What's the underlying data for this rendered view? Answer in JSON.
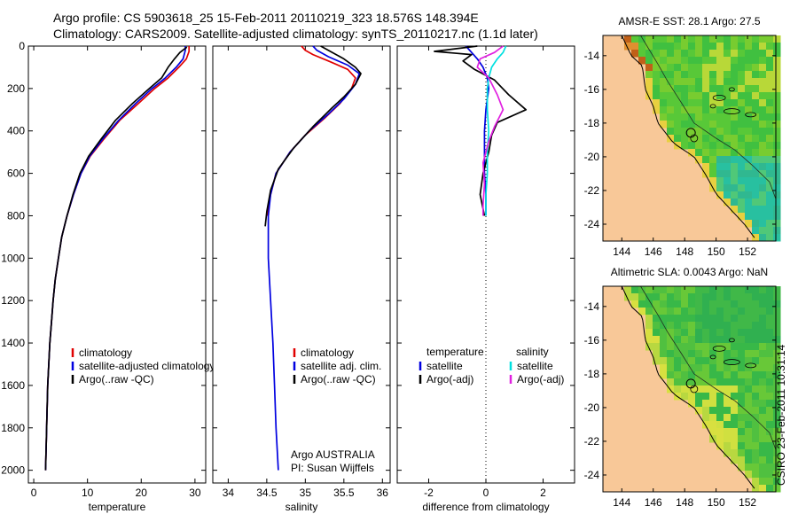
{
  "header": {
    "line1": "Argo profile: CS 5903618_25 15-Feb-2011 20110219_323 18.576S 148.394E",
    "line2": "Climatology: CARS2009. Satellite-adjusted climatology: synTS_20110217.nc (1.1d later)"
  },
  "footer": {
    "stamp": "CSIRO 23-Feb-2011 10:31:14",
    "argo_group": "Argo AUSTRALIA",
    "pi": "PI: Susan Wijffels"
  },
  "colors": {
    "red": "#e00000",
    "blue": "#0000e0",
    "black": "#000000",
    "cyan": "#00e0e0",
    "magenta": "#e020e0",
    "ocean": "#1ab04a",
    "land": "#f8c898"
  },
  "chart_data": [
    {
      "type": "line",
      "xlabel": "temperature",
      "xlim": [
        -1,
        32
      ],
      "xticks": [
        0,
        10,
        20,
        30
      ],
      "ylim": [
        2060,
        0
      ],
      "yticks": [
        0,
        200,
        400,
        600,
        800,
        1000,
        1200,
        1400,
        1600,
        1800,
        2000
      ],
      "legend": [
        "climatology",
        "satellite-adjusted climatology",
        "Argo(..raw -QC)"
      ],
      "series": [
        {
          "name": "climatology",
          "color": "red",
          "points": [
            [
              28.9,
              0
            ],
            [
              28.9,
              25
            ],
            [
              28.4,
              60
            ],
            [
              27,
              100
            ],
            [
              25,
              150
            ],
            [
              22.5,
              200
            ],
            [
              19.5,
              270
            ],
            [
              16,
              350
            ],
            [
              13,
              440
            ],
            [
              10.5,
              520
            ],
            [
              8.8,
              600
            ],
            [
              7.4,
              700
            ],
            [
              6.2,
              800
            ],
            [
              5.2,
              900
            ],
            [
              4.6,
              1000
            ],
            [
              4.0,
              1100
            ],
            [
              3.6,
              1200
            ],
            [
              3.3,
              1300
            ],
            [
              3.0,
              1400
            ],
            [
              2.8,
              1500
            ],
            [
              2.6,
              1600
            ],
            [
              2.5,
              1700
            ],
            [
              2.4,
              1800
            ],
            [
              2.3,
              1900
            ],
            [
              2.2,
              2000
            ]
          ]
        },
        {
          "name": "satellite-adjusted climatology",
          "color": "blue",
          "points": [
            [
              28.2,
              0
            ],
            [
              28.2,
              20
            ],
            [
              27.8,
              60
            ],
            [
              26.5,
              100
            ],
            [
              24.5,
              150
            ],
            [
              22,
              200
            ],
            [
              19,
              270
            ],
            [
              15.8,
              350
            ],
            [
              12.8,
              440
            ],
            [
              10.4,
              520
            ],
            [
              8.8,
              600
            ],
            [
              7.4,
              700
            ],
            [
              6.2,
              800
            ],
            [
              5.2,
              900
            ],
            [
              4.6,
              1000
            ],
            [
              4.0,
              1100
            ],
            [
              3.6,
              1200
            ],
            [
              3.3,
              1300
            ],
            [
              3.0,
              1400
            ],
            [
              2.8,
              1500
            ],
            [
              2.6,
              1600
            ],
            [
              2.5,
              1700
            ],
            [
              2.4,
              1800
            ],
            [
              2.3,
              1900
            ],
            [
              2.2,
              2000
            ]
          ]
        },
        {
          "name": "Argo(..raw -QC)",
          "color": "black",
          "points": [
            [
              28.5,
              5
            ],
            [
              27.2,
              30
            ],
            [
              26.2,
              60
            ],
            [
              25,
              100
            ],
            [
              23.8,
              150
            ],
            [
              21.5,
              200
            ],
            [
              18.4,
              270
            ],
            [
              15.2,
              350
            ],
            [
              12.5,
              440
            ],
            [
              10.2,
              520
            ],
            [
              8.6,
              600
            ],
            [
              7.3,
              700
            ],
            [
              6.2,
              800
            ],
            [
              5.2,
              900
            ],
            [
              4.6,
              1000
            ],
            [
              4.0,
              1100
            ],
            [
              3.6,
              1200
            ],
            [
              3.3,
              1300
            ],
            [
              3.0,
              1400
            ],
            [
              2.8,
              1500
            ],
            [
              2.6,
              1600
            ],
            [
              2.5,
              1700
            ],
            [
              2.4,
              1800
            ],
            [
              2.3,
              1900
            ],
            [
              2.2,
              2000
            ]
          ]
        }
      ]
    },
    {
      "type": "line",
      "xlabel": "salinity",
      "xlim": [
        33.8,
        36.1
      ],
      "xticks": [
        34,
        34.5,
        35,
        35.5,
        36
      ],
      "ylim": [
        2060,
        0
      ],
      "legend": [
        "climatology",
        "satellite adj. clim.",
        "Argo(..raw -QC)"
      ],
      "series": [
        {
          "name": "climatology",
          "color": "red",
          "points": [
            [
              34.95,
              0
            ],
            [
              35.0,
              20
            ],
            [
              35.1,
              40
            ],
            [
              35.3,
              70
            ],
            [
              35.55,
              110
            ],
            [
              35.65,
              150
            ],
            [
              35.6,
              200
            ],
            [
              35.45,
              270
            ],
            [
              35.25,
              340
            ],
            [
              35.0,
              420
            ],
            [
              34.8,
              500
            ],
            [
              34.62,
              600
            ],
            [
              34.55,
              700
            ],
            [
              34.5,
              800
            ]
          ]
        },
        {
          "name": "satellite adj. clim.",
          "color": "blue",
          "points": [
            [
              35.1,
              0
            ],
            [
              35.15,
              20
            ],
            [
              35.3,
              50
            ],
            [
              35.55,
              90
            ],
            [
              35.7,
              130
            ],
            [
              35.65,
              180
            ],
            [
              35.5,
              250
            ],
            [
              35.3,
              320
            ],
            [
              35.05,
              400
            ],
            [
              34.8,
              500
            ],
            [
              34.62,
              600
            ],
            [
              34.55,
              700
            ],
            [
              34.52,
              800
            ],
            [
              34.52,
              1000
            ],
            [
              34.55,
              1200
            ],
            [
              34.58,
              1400
            ],
            [
              34.6,
              1600
            ],
            [
              34.62,
              1800
            ],
            [
              34.65,
              2000
            ]
          ]
        },
        {
          "name": "Argo(..raw -QC)",
          "color": "black",
          "points": [
            [
              35.2,
              0
            ],
            [
              35.35,
              30
            ],
            [
              35.5,
              60
            ],
            [
              35.65,
              100
            ],
            [
              35.72,
              130
            ],
            [
              35.65,
              180
            ],
            [
              35.5,
              240
            ],
            [
              35.35,
              290
            ],
            [
              35.1,
              380
            ],
            [
              34.85,
              480
            ],
            [
              34.65,
              580
            ],
            [
              34.55,
              680
            ],
            [
              34.5,
              780
            ],
            [
              34.48,
              850
            ]
          ]
        }
      ]
    },
    {
      "type": "line",
      "xlabel": "difference from climatology",
      "xlim": [
        -3.1,
        3.1
      ],
      "xticks": [
        -2,
        0,
        2
      ],
      "ylim": [
        2060,
        0
      ],
      "legend_headers": [
        "temperature",
        "salinity"
      ],
      "legend": [
        "satellite",
        "Argo(-adj)",
        "satellite",
        "Argo(-adj)"
      ],
      "series": [
        {
          "name": "satellite",
          "group": "temperature",
          "color": "blue",
          "points": [
            [
              -0.7,
              0
            ],
            [
              -0.5,
              30
            ],
            [
              -0.3,
              60
            ],
            [
              -0.1,
              100
            ],
            [
              0.05,
              150
            ],
            [
              0.1,
              200
            ],
            [
              0.0,
              300
            ],
            [
              -0.05,
              400
            ],
            [
              -0.05,
              500
            ],
            [
              -0.05,
              600
            ],
            [
              0.0,
              700
            ],
            [
              0.0,
              800
            ]
          ]
        },
        {
          "name": "Argo(-adj)",
          "group": "temperature",
          "color": "black",
          "points": [
            [
              -0.3,
              0
            ],
            [
              -1.8,
              25
            ],
            [
              -0.5,
              40
            ],
            [
              -0.8,
              70
            ],
            [
              -0.4,
              110
            ],
            [
              0.3,
              160
            ],
            [
              0.8,
              230
            ],
            [
              1.4,
              300
            ],
            [
              0.4,
              360
            ],
            [
              0.2,
              420
            ],
            [
              0.1,
              500
            ],
            [
              -0.1,
              600
            ],
            [
              -0.2,
              700
            ],
            [
              -0.05,
              800
            ]
          ]
        },
        {
          "name": "satellite",
          "group": "salinity",
          "color": "cyan",
          "points": [
            [
              0.7,
              0
            ],
            [
              0.6,
              30
            ],
            [
              0.4,
              60
            ],
            [
              0.2,
              100
            ],
            [
              0.1,
              150
            ],
            [
              0.05,
              200
            ],
            [
              0.05,
              300
            ],
            [
              0.1,
              400
            ],
            [
              0.05,
              500
            ],
            [
              0.05,
              600
            ],
            [
              0.0,
              700
            ],
            [
              0.0,
              800
            ]
          ]
        },
        {
          "name": "Argo(-adj)",
          "group": "salinity",
          "color": "magenta",
          "points": [
            [
              0.6,
              0
            ],
            [
              0.3,
              30
            ],
            [
              -0.2,
              60
            ],
            [
              -0.3,
              100
            ],
            [
              0.1,
              150
            ],
            [
              0.4,
              230
            ],
            [
              0.6,
              300
            ],
            [
              0.3,
              380
            ],
            [
              0.1,
              450
            ],
            [
              -0.1,
              550
            ],
            [
              -0.05,
              650
            ],
            [
              -0.1,
              750
            ],
            [
              -0.1,
              800
            ]
          ]
        }
      ]
    },
    {
      "type": "heatmap",
      "title": "AMSR-E SST: 28.1 Argo: 27.5",
      "xlim": [
        142.8,
        153.8
      ],
      "ylim": [
        -25,
        -12.8
      ],
      "xticks": [
        144,
        146,
        148,
        150,
        152
      ],
      "xtick_labels": [
        "144",
        "146",
        "148",
        "150",
        "152"
      ],
      "yticks": [
        -14,
        -16,
        -18,
        -20,
        -22,
        -24
      ],
      "ytick_labels": [
        "-14",
        "-16",
        "-18",
        "-20",
        "-22",
        "-24"
      ]
    },
    {
      "type": "heatmap",
      "title": "Altimetric SLA: 0.0043 Argo: NaN",
      "xlim": [
        142.8,
        153.8
      ],
      "ylim": [
        -25,
        -12.8
      ],
      "xticks": [
        144,
        146,
        148,
        150,
        152
      ],
      "xtick_labels": [
        "144",
        "146",
        "148",
        "150",
        "152"
      ],
      "yticks": [
        -14,
        -16,
        -18,
        -20,
        -22,
        -24
      ],
      "ytick_labels": [
        "-14",
        "-16",
        "-18",
        "-20",
        "-22",
        "-24"
      ]
    }
  ]
}
